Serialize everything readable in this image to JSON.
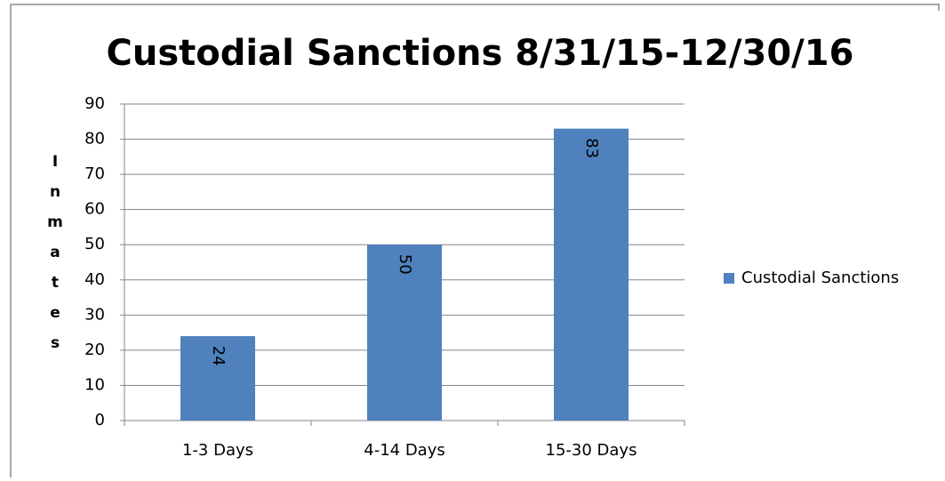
{
  "chart_data": {
    "type": "bar",
    "title": "Custodial Sanctions 8/31/15-12/30/16",
    "y_label": "Inmates",
    "categories": [
      "1-3 Days",
      "4-14 Days",
      "15-30 Days"
    ],
    "series": [
      {
        "name": "Custodial Sanctions",
        "color": "#4f81bd",
        "values": [
          24,
          50,
          83
        ]
      }
    ],
    "ylim": [
      0,
      90
    ],
    "yticks": [
      0,
      10,
      20,
      30,
      40,
      50,
      60,
      70,
      80,
      90
    ],
    "grid": true,
    "data_labels": true,
    "legend": "right"
  }
}
